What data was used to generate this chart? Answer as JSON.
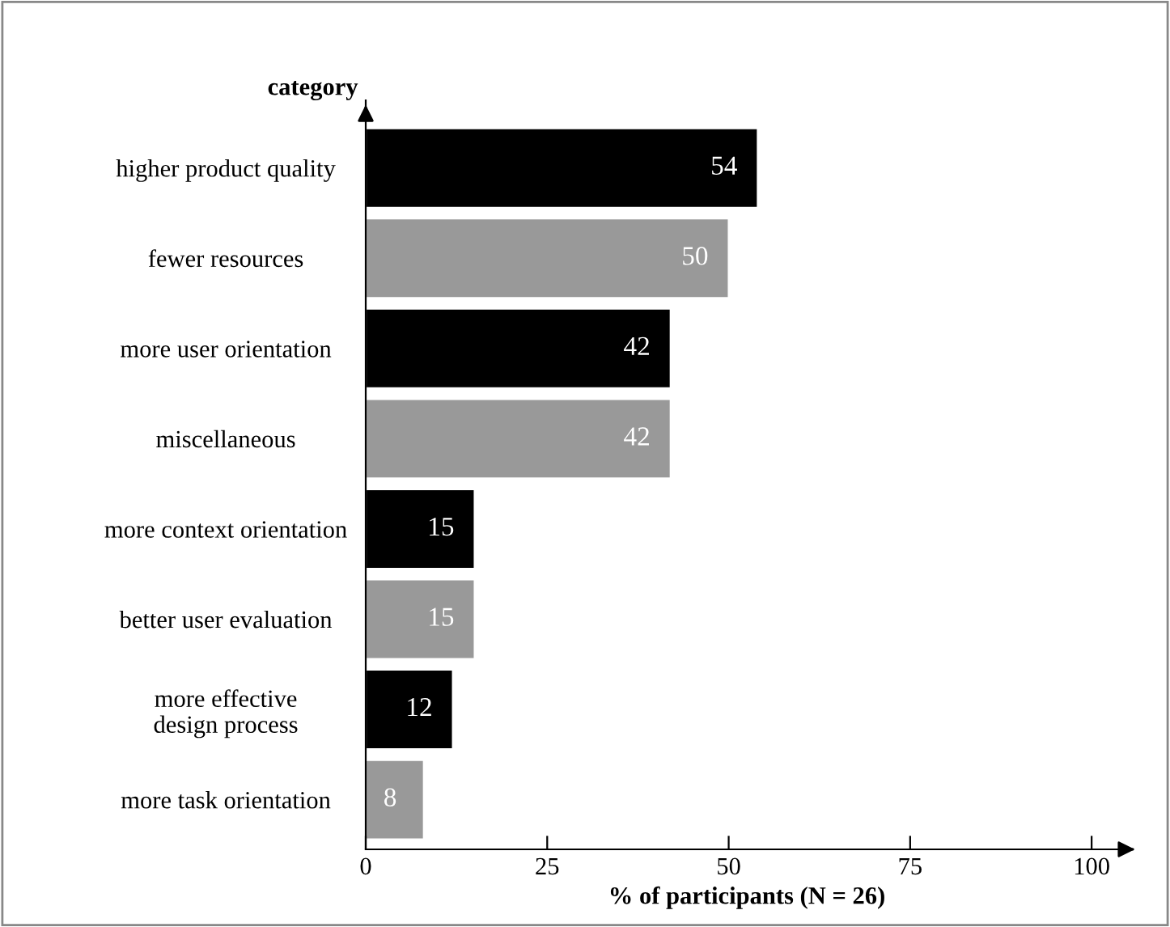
{
  "chart_data": {
    "type": "bar",
    "orientation": "horizontal",
    "ylabel": "category",
    "xlabel": "% of participants (N = 26)",
    "categories": [
      "higher product quality",
      "fewer resources",
      "more user orientation",
      "miscellaneous",
      "more context orientation",
      "better user evaluation",
      "more effective\ndesign process",
      "more task orientation"
    ],
    "values": [
      54,
      50,
      42,
      42,
      15,
      15,
      12,
      8
    ],
    "colors": [
      "#000000",
      "#999999",
      "#000000",
      "#999999",
      "#000000",
      "#999999",
      "#000000",
      "#999999"
    ],
    "xlim": [
      0,
      105
    ],
    "xticks": [
      0,
      25,
      50,
      75,
      100
    ],
    "data_labels": true,
    "grid": false,
    "legend": false
  }
}
